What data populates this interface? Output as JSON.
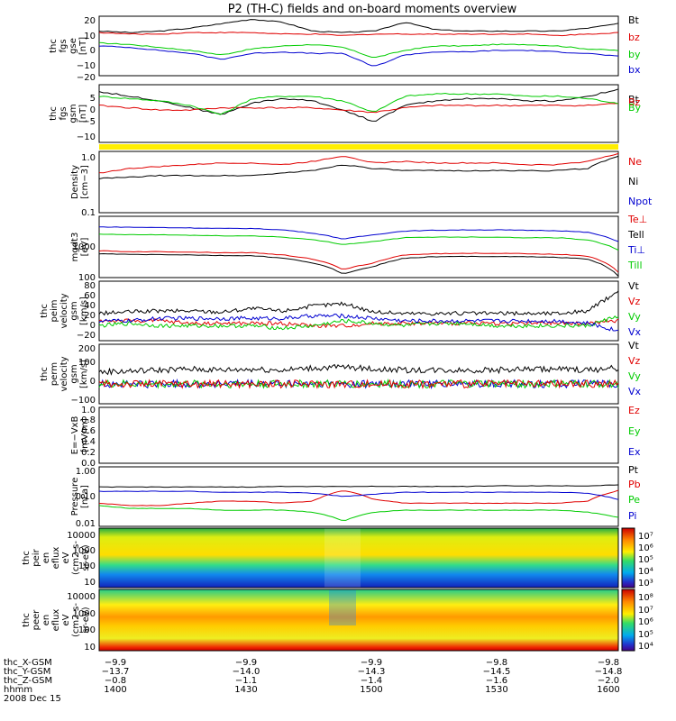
{
  "title": "P2 (TH-C) fields and on-board moments overview",
  "colors": {
    "black": "#000000",
    "red": "#e00000",
    "green": "#00cc00",
    "blue": "#0000d0",
    "yellow": "#ffee00"
  },
  "chart_data": [
    {
      "type": "line",
      "panel": "fgs_gse",
      "ylabel": [
        "thc",
        "fgs",
        "gse",
        "[nT]"
      ],
      "ylim": [
        -20,
        20
      ],
      "yticks": [
        "20",
        "10",
        "0",
        "−10",
        "−20"
      ],
      "series": [
        {
          "name": "Bt",
          "color": "black",
          "values": [
            10,
            9,
            10,
            12,
            15,
            18,
            16,
            10,
            9,
            10,
            16,
            11,
            10,
            10,
            10,
            10,
            12,
            15
          ]
        },
        {
          "name": "bz",
          "color": "red",
          "values": [
            9,
            8,
            8,
            9,
            9,
            9,
            8,
            8,
            7,
            8,
            8,
            8,
            8,
            8,
            8,
            7,
            8,
            9
          ]
        },
        {
          "name": "by",
          "color": "green",
          "values": [
            2,
            1,
            -1,
            -3,
            -6,
            -2,
            0,
            1,
            -1,
            -8,
            -3,
            0,
            0,
            1,
            1,
            0,
            -2,
            -3
          ]
        },
        {
          "name": "bx",
          "color": "blue",
          "values": [
            0,
            -1,
            -3,
            -5,
            -9,
            -5,
            -4,
            -5,
            -5,
            -14,
            -6,
            -4,
            -4,
            -3,
            -3,
            -4,
            -5,
            -7
          ]
        }
      ]
    },
    {
      "type": "line",
      "panel": "fgs_gsm",
      "ylabel": [
        "thc",
        "fgs",
        "gsm",
        "[nT]"
      ],
      "ylim": [
        -15,
        10
      ],
      "yticks": [
        "5",
        "0",
        "−5",
        "−10"
      ],
      "series": [
        {
          "name": "Bt",
          "color": "black",
          "values": [
            7,
            5,
            3,
            0,
            -3,
            2,
            4,
            3,
            -1,
            -6,
            1,
            3,
            4,
            4,
            3,
            3,
            5,
            8
          ]
        },
        {
          "name": "Bz",
          "color": "red",
          "values": [
            1,
            0,
            -1,
            -1,
            0,
            0,
            0,
            0,
            -1,
            -2,
            0,
            1,
            1,
            1,
            1,
            1,
            1,
            2
          ]
        },
        {
          "name": "By",
          "color": "green",
          "values": [
            5,
            4,
            3,
            1,
            -3,
            4,
            5,
            5,
            3,
            -2,
            5,
            6,
            6,
            6,
            5,
            5,
            4,
            2
          ]
        }
      ]
    },
    {
      "type": "line",
      "panel": "density",
      "ylabel": [
        "Density",
        "[cm−3]"
      ],
      "ylim": [
        0.1,
        1.2
      ],
      "log": true,
      "yticks": [
        "1.0",
        "0.1"
      ],
      "series": [
        {
          "name": "Ne",
          "color": "red",
          "values": [
            0.5,
            0.6,
            0.65,
            0.7,
            0.75,
            0.75,
            0.7,
            0.8,
            1.0,
            0.75,
            0.8,
            0.75,
            0.75,
            0.75,
            0.7,
            0.7,
            0.8,
            1.1
          ]
        },
        {
          "name": "Ni",
          "color": "black",
          "values": [
            0.4,
            0.42,
            0.45,
            0.45,
            0.45,
            0.45,
            0.5,
            0.55,
            0.7,
            0.6,
            0.55,
            0.55,
            0.55,
            0.55,
            0.55,
            0.55,
            0.6,
            1.0
          ]
        },
        {
          "name": "Npot",
          "color": "blue",
          "values": []
        }
      ]
    },
    {
      "type": "line",
      "panel": "temperature",
      "ylabel": [
        "mgdt3",
        "[eV]"
      ],
      "ylim": [
        100,
        10000
      ],
      "log": true,
      "yticks": [
        "1000",
        "100"
      ],
      "series": [
        {
          "name": "Te⊥",
          "color": "red",
          "values": [
            750,
            700,
            700,
            680,
            650,
            650,
            550,
            400,
            180,
            300,
            550,
            600,
            620,
            620,
            600,
            580,
            500,
            150
          ]
        },
        {
          "name": "Tell",
          "color": "black",
          "values": [
            600,
            570,
            560,
            550,
            520,
            520,
            430,
            300,
            130,
            230,
            430,
            480,
            490,
            490,
            480,
            460,
            400,
            110
          ]
        },
        {
          "name": "Ti⊥",
          "color": "blue",
          "values": [
            4500,
            4400,
            4300,
            4200,
            4000,
            4000,
            3600,
            2800,
            1800,
            2500,
            3300,
            3500,
            3600,
            3600,
            3500,
            3400,
            3000,
            1500
          ]
        },
        {
          "name": "Till",
          "color": "green",
          "values": [
            2600,
            2500,
            2500,
            2400,
            2300,
            2300,
            2100,
            1700,
            1200,
            1500,
            2000,
            2100,
            2100,
            2100,
            2000,
            2000,
            1700,
            800
          ]
        }
      ]
    },
    {
      "type": "line",
      "panel": "peim_velocity",
      "ylabel": [
        "thc",
        "peim",
        "velocity",
        "gsm",
        "[km/s]"
      ],
      "ylim": [
        -30,
        90
      ],
      "yticks": [
        "80",
        "60",
        "40",
        "20",
        "0",
        "−20"
      ],
      "series": [
        {
          "name": "Vt",
          "color": "black",
          "values": [
            25,
            28,
            30,
            30,
            28,
            35,
            30,
            40,
            45,
            28,
            25,
            25,
            25,
            25,
            25,
            25,
            30,
            70
          ]
        },
        {
          "name": "Vz",
          "color": "red",
          "values": [
            10,
            10,
            10,
            5,
            5,
            5,
            5,
            0,
            0,
            5,
            5,
            5,
            5,
            5,
            5,
            5,
            5,
            10
          ]
        },
        {
          "name": "Vy",
          "color": "green",
          "values": [
            0,
            5,
            0,
            0,
            0,
            0,
            -5,
            0,
            10,
            5,
            0,
            5,
            5,
            0,
            0,
            0,
            0,
            20
          ]
        },
        {
          "name": "Vx",
          "color": "blue",
          "values": [
            10,
            10,
            15,
            15,
            15,
            15,
            15,
            20,
            20,
            15,
            10,
            10,
            10,
            10,
            10,
            10,
            5,
            -10
          ]
        }
      ]
    },
    {
      "type": "line",
      "panel": "perm_velocity",
      "ylabel": [
        "thc",
        "perm",
        "velocity",
        "gsm",
        "[km/s]"
      ],
      "ylim": [
        -100,
        200
      ],
      "yticks": [
        "200",
        "100",
        "0",
        "−100"
      ],
      "series": [
        {
          "name": "Vt",
          "color": "black",
          "values": [
            60,
            65,
            70,
            75,
            70,
            75,
            70,
            80,
            85,
            75,
            70,
            70,
            70,
            70,
            75,
            75,
            70,
            80
          ]
        },
        {
          "name": "Vz",
          "color": "red",
          "values": [
            0,
            0,
            0,
            0,
            0,
            0,
            0,
            0,
            0,
            0,
            0,
            0,
            0,
            0,
            0,
            0,
            0,
            0
          ]
        },
        {
          "name": "Vy",
          "color": "green",
          "values": [
            0,
            0,
            0,
            0,
            0,
            0,
            0,
            0,
            0,
            0,
            0,
            0,
            0,
            0,
            0,
            0,
            0,
            0
          ]
        },
        {
          "name": "Vx",
          "color": "blue",
          "values": [
            0,
            0,
            0,
            0,
            0,
            0,
            0,
            0,
            0,
            0,
            0,
            0,
            0,
            0,
            0,
            0,
            0,
            0
          ]
        }
      ]
    },
    {
      "type": "line",
      "panel": "efield",
      "ylabel": [
        "E=−VxB",
        "[mV/m]"
      ],
      "ylim": [
        0,
        1
      ],
      "yticks": [
        "1.0",
        "0.8",
        "0.6",
        "0.4",
        "0.2",
        "0.0"
      ],
      "series": [
        {
          "name": "Ez",
          "color": "red",
          "values": []
        },
        {
          "name": "Ey",
          "color": "green",
          "values": []
        },
        {
          "name": "Ex",
          "color": "blue",
          "values": []
        }
      ]
    },
    {
      "type": "line",
      "panel": "pressure",
      "ylabel": [
        "Pressure",
        "[nPa]"
      ],
      "ylim": [
        0.01,
        1
      ],
      "log": true,
      "yticks": [
        "1.00",
        "0.10",
        "0.01"
      ],
      "series": [
        {
          "name": "Pt",
          "color": "black",
          "values": [
            0.21,
            0.21,
            0.21,
            0.21,
            0.21,
            0.21,
            0.22,
            0.22,
            0.22,
            0.22,
            0.22,
            0.22,
            0.22,
            0.23,
            0.23,
            0.23,
            0.23,
            0.25
          ]
        },
        {
          "name": "Pb",
          "color": "red",
          "values": [
            0.06,
            0.05,
            0.05,
            0.06,
            0.07,
            0.07,
            0.06,
            0.07,
            0.16,
            0.08,
            0.06,
            0.06,
            0.06,
            0.06,
            0.06,
            0.06,
            0.07,
            0.16
          ]
        },
        {
          "name": "Pe",
          "color": "green",
          "values": [
            0.05,
            0.04,
            0.04,
            0.04,
            0.035,
            0.035,
            0.035,
            0.03,
            0.015,
            0.03,
            0.035,
            0.035,
            0.035,
            0.035,
            0.035,
            0.035,
            0.03,
            0.02
          ]
        },
        {
          "name": "Pi",
          "color": "blue",
          "values": [
            0.15,
            0.15,
            0.15,
            0.15,
            0.14,
            0.14,
            0.14,
            0.13,
            0.1,
            0.12,
            0.14,
            0.14,
            0.14,
            0.14,
            0.14,
            0.14,
            0.13,
            0.08
          ]
        }
      ]
    },
    {
      "type": "heatmap",
      "panel": "peir_en_eflux",
      "ylabel": [
        "thc",
        "peir",
        "en",
        "eflux",
        "eV",
        "(cm2-s-",
        "sr-eV)"
      ],
      "ylim": [
        5,
        25000
      ],
      "log": true,
      "yticks": [
        "10000",
        "1000",
        "100",
        "10"
      ],
      "colorbar_ticks": [
        "10⁷",
        "10⁶",
        "10⁵",
        "10⁴",
        "10³"
      ]
    },
    {
      "type": "heatmap",
      "panel": "peer_en_eflux",
      "ylabel": [
        "thc",
        "peer",
        "en",
        "eflux",
        "eV",
        "(cm2-s-",
        "sr-eV)"
      ],
      "ylim": [
        7,
        25000
      ],
      "log": true,
      "yticks": [
        "10000",
        "1000",
        "100",
        "10"
      ],
      "colorbar_ticks": [
        "10⁸",
        "10⁷",
        "10⁶",
        "10⁵",
        "10⁴"
      ]
    }
  ],
  "x_axis": {
    "rows": [
      {
        "label": "thc_X-GSM",
        "values": [
          "−9.9",
          "−9.9",
          "−9.9",
          "−9.8",
          "−9.8"
        ]
      },
      {
        "label": "thc_Y-GSM",
        "values": [
          "−13.7",
          "−14.0",
          "−14.3",
          "−14.5",
          "−14.8"
        ]
      },
      {
        "label": "thc_Z-GSM",
        "values": [
          "−0.8",
          "−1.1",
          "−1.4",
          "−1.6",
          "−2.0"
        ]
      },
      {
        "label": "hhmm",
        "values": [
          "1400",
          "1430",
          "1500",
          "1530",
          "1600"
        ]
      }
    ],
    "date": "2008 Dec 15"
  }
}
